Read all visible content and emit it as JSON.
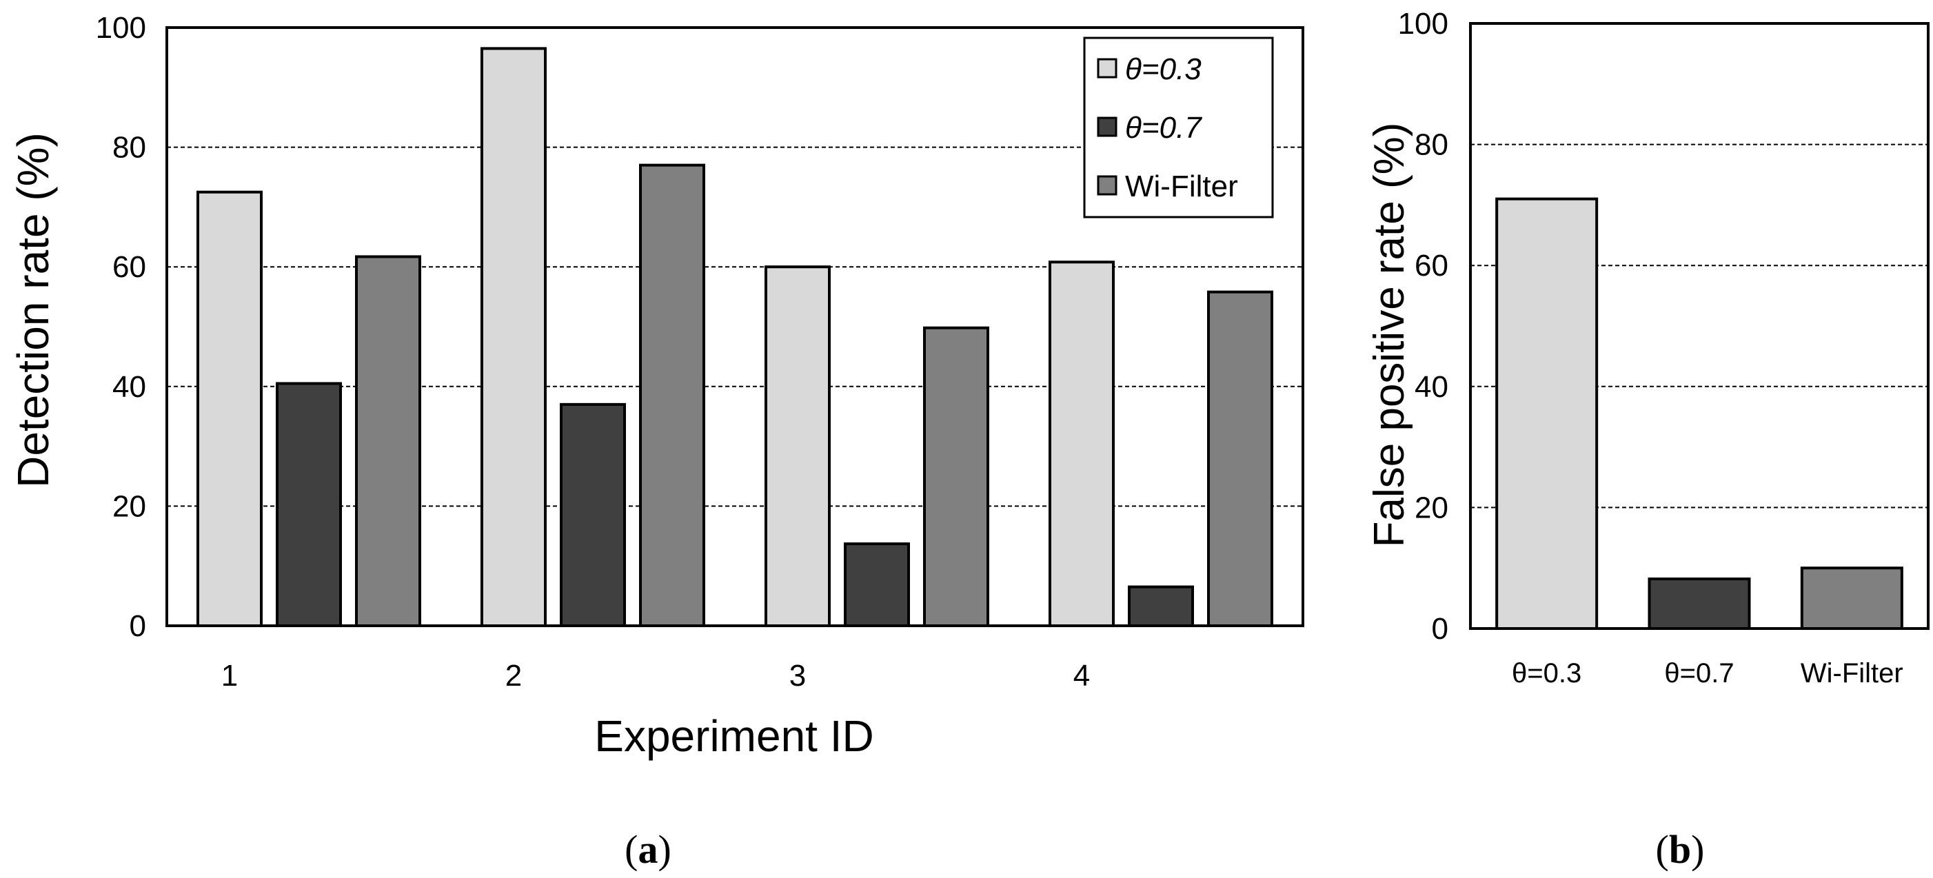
{
  "chart_data": [
    {
      "type": "bar",
      "panel": "a",
      "caption_open": "(",
      "caption_letter": "a",
      "caption_close": ")",
      "title": "",
      "xlabel": "Experiment ID",
      "ylabel": "Detection rate (%)",
      "ylim": [
        0,
        100
      ],
      "yticks": [
        0,
        20,
        40,
        60,
        80,
        100
      ],
      "grid": true,
      "legend_position": "top-right",
      "categories": [
        "1",
        "2",
        "3",
        "4"
      ],
      "series": [
        {
          "name": "θ=0.3",
          "color": "#d9d9d9",
          "italic": true,
          "values": [
            72.5,
            96.5,
            60,
            60.8
          ]
        },
        {
          "name": "θ=0.7",
          "color": "#404040",
          "italic": true,
          "values": [
            40.5,
            37,
            13.7,
            6.5
          ]
        },
        {
          "name": "Wi-Filter",
          "color": "#808080",
          "italic": false,
          "values": [
            61.7,
            77,
            49.8,
            55.8
          ]
        }
      ]
    },
    {
      "type": "bar",
      "panel": "b",
      "caption_open": "(",
      "caption_letter": "b",
      "caption_close": ")",
      "title": "",
      "xlabel": "",
      "ylabel": "False positive rate (%)",
      "ylim": [
        0,
        100
      ],
      "yticks": [
        0,
        20,
        40,
        60,
        80,
        100
      ],
      "grid": true,
      "categories": [
        "θ=0.3",
        "θ=0.7",
        "Wi-Filter"
      ],
      "colors": [
        "#d9d9d9",
        "#404040",
        "#808080"
      ],
      "values": [
        71,
        8.2,
        10
      ]
    }
  ]
}
